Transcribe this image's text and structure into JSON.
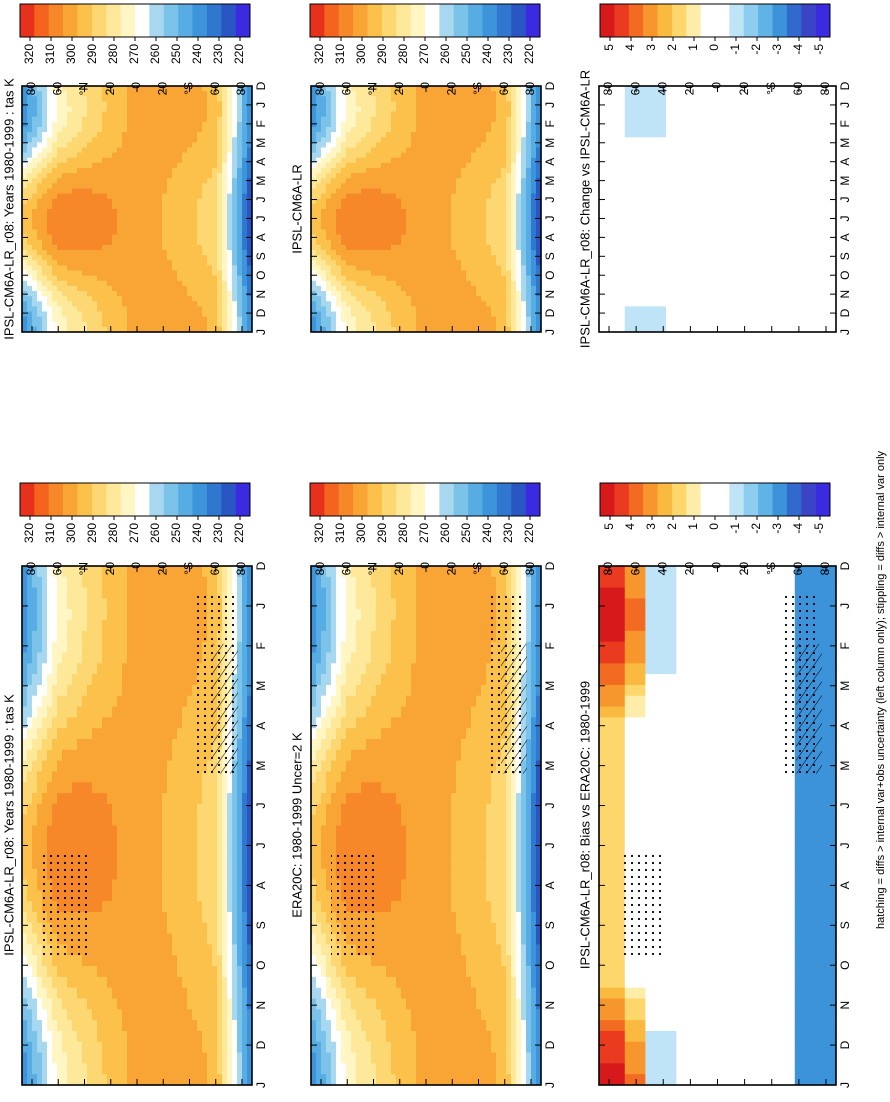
{
  "figure_note": "hatching = diffs > internal var+obs uncertainty (left column only); stippling = diffs > internal var only",
  "colors": {
    "abs_scale": [
      "#e6321c",
      "#f5641e",
      "#f7882a",
      "#f9a535",
      "#fbc14a",
      "#fdd772",
      "#fee99a",
      "#fff6c4",
      "#ffffff",
      "#a8d8f0",
      "#7cc3ea",
      "#57ace3",
      "#3d94db",
      "#2f77cf",
      "#2a56c4",
      "#3a2be0"
    ],
    "diff_scale": [
      "#d7191c",
      "#ea3a1f",
      "#f36b22",
      "#f7962c",
      "#fab93f",
      "#fdd76b",
      "#fdeda8",
      "#ffffff",
      "#ffffff",
      "#bfe3f7",
      "#8dcdf0",
      "#5fb3e6",
      "#3d93da",
      "#3169cd",
      "#3c44c6",
      "#3a2be0"
    ],
    "axis": "#000000"
  },
  "panels": {
    "p1": {
      "title": "IPSL-CM6A-LR_r08: Years 1980-1999 : tas K"
    },
    "p2": {
      "title": "IPSL-CM6A-LR_r08: Years 1980-1999 : tas K"
    },
    "p3": {
      "title": "ERA20C: 1980-1999 Uncer=2 K"
    },
    "p4": {
      "title": "IPSL-CM6A-LR"
    },
    "p5": {
      "title": "IPSL-CM6A-LR_r08: Bias vs ERA20C: 1980-1999"
    },
    "p6": {
      "title": "IPSL-CM6A-LR_r08: Change vs IPSL-CM6A-LR"
    }
  },
  "chart_data": [
    {
      "type": "heatmap",
      "panel": "p1",
      "title": "IPSL-CM6A-LR_r08: Years 1980-1999 : tas K",
      "x_ticks": [
        "D",
        "J",
        "F",
        "M",
        "A",
        "M",
        "J",
        "J",
        "A",
        "S",
        "O",
        "N",
        "D",
        "J"
      ],
      "y_ticks": [
        "80",
        "60",
        "°N",
        "20",
        "0",
        "20",
        "°S",
        "60",
        "80"
      ],
      "colorbar_ticks": [
        "320",
        "310",
        "300",
        "290",
        "280",
        "270",
        "260",
        "250",
        "240",
        "230",
        "220"
      ],
      "colorbar_range": [
        215,
        325
      ],
      "approx_values_K": {
        "tropics": 300,
        "northern_high_lat_winter": 250,
        "northern_high_lat_summer": 280,
        "southern_high_lat": 225
      }
    },
    {
      "type": "heatmap",
      "panel": "p2",
      "title": "IPSL-CM6A-LR_r08: Years 1980-1999 : tas K",
      "x_ticks": [
        "D",
        "J",
        "F",
        "M",
        "A",
        "M",
        "J",
        "J",
        "A",
        "S",
        "O",
        "N",
        "D",
        "J"
      ],
      "y_ticks": [
        "80",
        "60",
        "°N",
        "20",
        "0",
        "20",
        "°S",
        "60",
        "80"
      ],
      "colorbar_ticks": [
        "320",
        "310",
        "300",
        "290",
        "280",
        "270",
        "260",
        "250",
        "240",
        "230",
        "220"
      ],
      "colorbar_range": [
        215,
        325
      ]
    },
    {
      "type": "heatmap",
      "panel": "p3",
      "title": "ERA20C: 1980-1999 Uncer=2 K",
      "x_ticks": [
        "D",
        "J",
        "F",
        "M",
        "A",
        "M",
        "J",
        "J",
        "A",
        "S",
        "O",
        "N",
        "D",
        "J"
      ],
      "y_ticks": [
        "80",
        "60",
        "°N",
        "20",
        "0",
        "20",
        "°S",
        "60",
        "80"
      ],
      "colorbar_ticks": [
        "320",
        "310",
        "300",
        "290",
        "280",
        "270",
        "260",
        "250",
        "240",
        "230",
        "220"
      ],
      "colorbar_range": [
        215,
        325
      ]
    },
    {
      "type": "heatmap",
      "panel": "p4",
      "title": "IPSL-CM6A-LR",
      "x_ticks": [
        "D",
        "J",
        "F",
        "M",
        "A",
        "M",
        "J",
        "J",
        "A",
        "S",
        "O",
        "N",
        "D",
        "J"
      ],
      "y_ticks": [
        "80",
        "60",
        "°N",
        "20",
        "0",
        "20",
        "°S",
        "60",
        "80"
      ],
      "colorbar_ticks": [
        "320",
        "310",
        "300",
        "290",
        "280",
        "270",
        "260",
        "250",
        "240",
        "230",
        "220"
      ],
      "colorbar_range": [
        215,
        325
      ]
    },
    {
      "type": "heatmap",
      "panel": "p5",
      "title": "IPSL-CM6A-LR_r08: Bias vs ERA20C: 1980-1999",
      "x_ticks": [
        "D",
        "J",
        "F",
        "M",
        "A",
        "M",
        "J",
        "J",
        "A",
        "S",
        "O",
        "N",
        "D",
        "J"
      ],
      "y_ticks": [
        "80",
        "60",
        "40",
        "20",
        "0",
        "20",
        "°S",
        "60",
        "80"
      ],
      "colorbar_ticks": [
        "5",
        "4",
        "3",
        "2",
        "1",
        "0",
        "-1",
        "-2",
        "-3",
        "-4",
        "-5"
      ],
      "colorbar_range": [
        -5.5,
        5.5
      ]
    },
    {
      "type": "heatmap",
      "panel": "p6",
      "title": "IPSL-CM6A-LR_r08: Change vs IPSL-CM6A-LR",
      "x_ticks": [
        "D",
        "J",
        "F",
        "M",
        "A",
        "M",
        "J",
        "J",
        "A",
        "S",
        "O",
        "N",
        "D",
        "J"
      ],
      "y_ticks": [
        "80",
        "60",
        "40",
        "20",
        "0",
        "20",
        "°S",
        "60",
        "80"
      ],
      "colorbar_ticks": [
        "5",
        "4",
        "3",
        "2",
        "1",
        "0",
        "-1",
        "-2",
        "-3",
        "-4",
        "-5"
      ],
      "colorbar_range": [
        -5.5,
        5.5
      ]
    }
  ]
}
